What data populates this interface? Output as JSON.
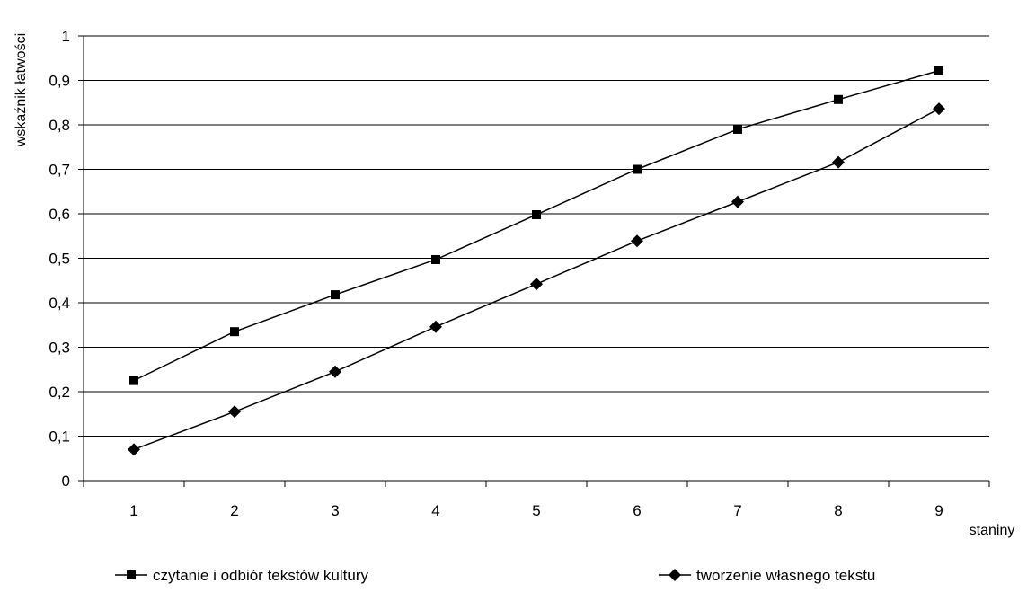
{
  "chart_data": {
    "type": "line",
    "title": "",
    "xlabel": "staniny",
    "ylabel": "wskaźnik łatwości",
    "categories": [
      "1",
      "2",
      "3",
      "4",
      "5",
      "6",
      "7",
      "8",
      "9"
    ],
    "ylim": [
      0,
      1
    ],
    "yticks": [
      "0",
      "0,1",
      "0,2",
      "0,3",
      "0,4",
      "0,5",
      "0,6",
      "0,7",
      "0,8",
      "0,9",
      "1"
    ],
    "grid": "horizontal",
    "legend_position": "bottom",
    "series": [
      {
        "name": "czytanie i odbiór tekstów kultury",
        "marker": "square",
        "values": [
          0.225,
          0.335,
          0.418,
          0.497,
          0.598,
          0.7,
          0.79,
          0.857,
          0.922
        ]
      },
      {
        "name": "tworzenie własnego tekstu",
        "marker": "diamond",
        "values": [
          0.07,
          0.155,
          0.245,
          0.346,
          0.442,
          0.539,
          0.627,
          0.716,
          0.836
        ]
      }
    ],
    "colors": {
      "line": "#000000",
      "grid": "#000000",
      "background": "#ffffff"
    }
  }
}
